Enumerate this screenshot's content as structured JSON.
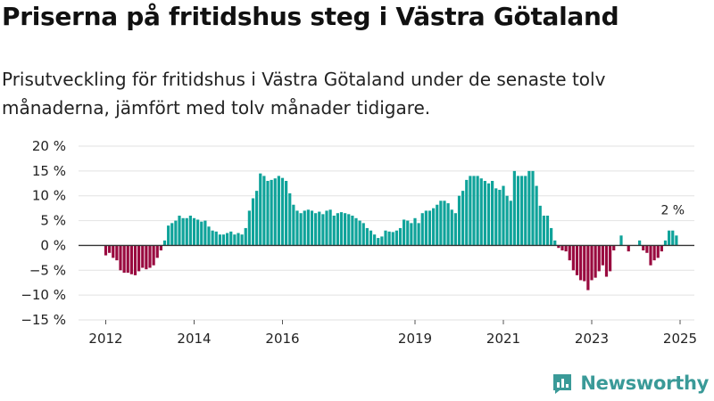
{
  "header": {
    "title": "Priserna på fritidshus steg i Västra Götaland",
    "subtitle": "Prisutveckling för fritidshus i Västra Götaland under de senaste tolv månaderna, jämfört med tolv månader tidigare."
  },
  "brand": {
    "name": "Newsworthy",
    "icon": "bar-chart-logo-icon",
    "color": "#3a9a98"
  },
  "chart_data": {
    "type": "bar",
    "title": "",
    "xlabel": "",
    "ylabel": "",
    "ylim": [
      -15,
      20
    ],
    "yticks": [
      -15,
      -10,
      -5,
      0,
      5,
      10,
      15,
      20
    ],
    "ytick_labels": [
      "−15 %",
      "−10 %",
      "−5 %",
      "0 %",
      "5 %",
      "10 %",
      "15 %",
      "20 %"
    ],
    "grid": true,
    "legend": "none",
    "colors": {
      "positive": "#0fa39a",
      "negative": "#990a3f",
      "zero_line": "#333333",
      "grid": "#e2e2e2"
    },
    "x_start": "2012-01",
    "xtick_labels": [
      {
        "label": "2012",
        "year": 2012
      },
      {
        "label": "2014",
        "year": 2014
      },
      {
        "label": "2016",
        "year": 2016
      },
      {
        "label": "2019",
        "year": 2019
      },
      {
        "label": "2021",
        "year": 2021
      },
      {
        "label": "2023",
        "year": 2023
      },
      {
        "label": "2025",
        "year": 2025
      }
    ],
    "annotation": {
      "label": "2 %"
    },
    "values": [
      -2,
      -1.5,
      -2.5,
      -3,
      -5,
      -5.5,
      -5.5,
      -5.8,
      -6,
      -5.2,
      -4.5,
      -4.8,
      -4.5,
      -4,
      -2.5,
      -1,
      1,
      4,
      4.5,
      5,
      6,
      5.5,
      5.5,
      6,
      5.5,
      5.2,
      4.8,
      5,
      3.8,
      3,
      2.8,
      2.2,
      2.2,
      2.5,
      2.8,
      2.2,
      2.5,
      2.2,
      3.5,
      7,
      9.5,
      11,
      14.5,
      14,
      13,
      13.2,
      13.5,
      14,
      13.6,
      13,
      10.5,
      8.2,
      7,
      6.5,
      7,
      7.2,
      7,
      6.5,
      6.8,
      6.3,
      7,
      7.2,
      6,
      6.5,
      6.7,
      6.5,
      6.3,
      6,
      5.5,
      5,
      4.5,
      3.5,
      3,
      2.2,
      1.5,
      1.8,
      3,
      2.8,
      2.7,
      3,
      3.5,
      5.2,
      5,
      4.5,
      5.5,
      4.5,
      6.5,
      7,
      7,
      7.5,
      8.2,
      9,
      9,
      8.5,
      7.2,
      6.5,
      10,
      11,
      13.2,
      14,
      14,
      14,
      13.5,
      13,
      12.5,
      13,
      11.5,
      11.2,
      12,
      10,
      9,
      15,
      14,
      14,
      14,
      15,
      15,
      12,
      8,
      6,
      6,
      3.5,
      1,
      -0.5,
      -1,
      -1.2,
      -3,
      -5,
      -6,
      -7,
      -7.2,
      -9,
      -7,
      -6.5,
      -5.2,
      -4,
      -6.3,
      -5.2,
      -1,
      0,
      2,
      0,
      -1.2,
      0,
      0,
      1,
      -1,
      -1.5,
      -4,
      -3,
      -2.5,
      -1.2,
      1,
      3,
      3,
      2
    ]
  }
}
